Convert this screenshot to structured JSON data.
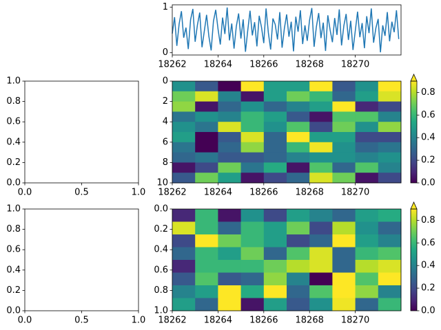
{
  "chart_data": [
    {
      "type": "line",
      "color": "#1f77b4",
      "x": [
        18262,
        18262.1,
        18262.2,
        18262.3,
        18262.4,
        18262.5,
        18262.6,
        18262.7,
        18262.8,
        18262.9,
        18263,
        18263.1,
        18263.2,
        18263.3,
        18263.4,
        18263.5,
        18263.6,
        18263.7,
        18263.8,
        18263.9,
        18264,
        18264.1,
        18264.2,
        18264.3,
        18264.4,
        18264.5,
        18264.6,
        18264.7,
        18264.8,
        18264.9,
        18265,
        18265.1,
        18265.2,
        18265.3,
        18265.4,
        18265.5,
        18265.6,
        18265.7,
        18265.8,
        18265.9,
        18266,
        18266.1,
        18266.2,
        18266.3,
        18266.4,
        18266.5,
        18266.6,
        18266.7,
        18266.8,
        18266.9,
        18267,
        18267.1,
        18267.2,
        18267.3,
        18267.4,
        18267.5,
        18267.6,
        18267.7,
        18267.8,
        18267.9,
        18268,
        18268.1,
        18268.2,
        18268.3,
        18268.4,
        18268.5,
        18268.6,
        18268.7,
        18268.8,
        18268.9,
        18269,
        18269.1,
        18269.2,
        18269.3,
        18269.4,
        18269.5,
        18269.6,
        18269.7,
        18269.8,
        18269.9,
        18270,
        18270.1,
        18270.2,
        18270.3,
        18270.4,
        18270.5,
        18270.6,
        18270.7,
        18270.8,
        18270.9,
        18271,
        18271.1,
        18271.2,
        18271.3,
        18271.4,
        18271.5,
        18271.6,
        18271.7,
        18271.8,
        18271.9
      ],
      "values": [
        0.42,
        0.78,
        0.15,
        0.63,
        0.91,
        0.33,
        0.55,
        0.08,
        0.72,
        0.96,
        0.24,
        0.61,
        0.88,
        0.12,
        0.47,
        0.83,
        0.36,
        0.05,
        0.69,
        0.94,
        0.52,
        0.18,
        0.77,
        0.41,
        0.99,
        0.27,
        0.64,
        0.09,
        0.58,
        0.86,
        0.31,
        0.73,
        0.02,
        0.49,
        0.92,
        0.38,
        0.67,
        0.14,
        0.81,
        0.56,
        0.21,
        0.97,
        0.44,
        0.07,
        0.75,
        0.62,
        0.29,
        0.89,
        0.11,
        0.53,
        0.84,
        0.35,
        0.68,
        0.03,
        0.79,
        0.46,
        0.93,
        0.19,
        0.6,
        0.26,
        0.71,
        0.98,
        0.13,
        0.57,
        0.87,
        0.32,
        0.66,
        0.04,
        0.82,
        0.5,
        0.23,
        0.76,
        0.39,
        0.95,
        0.16,
        0.59,
        0.85,
        0.28,
        0.7,
        0.06,
        0.48,
        0.9,
        0.34,
        0.65,
        0.1,
        0.8,
        0.43,
        0.97,
        0.22,
        0.54,
        0.74,
        0.01,
        0.6,
        0.37,
        0.89,
        0.25,
        0.68,
        0.45,
        0.93,
        0.3
      ],
      "xlim": [
        18262,
        18272
      ],
      "xticks": [
        18262,
        18264,
        18266,
        18268,
        18270
      ],
      "ylim": [
        -0.05,
        1.05
      ],
      "yticks": [
        0,
        1
      ]
    },
    {
      "type": "empty",
      "xlim": [
        0,
        1
      ],
      "ylim": [
        0,
        1
      ],
      "xticks": [
        {
          "value": 0,
          "label": "0.0"
        },
        0.5,
        {
          "value": 1,
          "label": "1.0"
        }
      ],
      "yticks": [
        {
          "value": 0,
          "label": "0.0"
        },
        0.2,
        0.4,
        0.6,
        0.8,
        {
          "value": 1,
          "label": "1.0"
        }
      ]
    },
    {
      "type": "heatmap",
      "colormap": "viridis",
      "xlim": [
        18262,
        18272
      ],
      "xticks": [
        18262,
        18264,
        18266,
        18268,
        18270
      ],
      "ylim": [
        10,
        0
      ],
      "yticks": [
        0,
        2,
        4,
        6,
        8,
        10
      ],
      "z": [
        [
          0.45,
          0.25,
          0.0,
          0.95,
          0.5,
          0.5,
          0.95,
          0.25,
          0.45,
          0.98
        ],
        [
          0.7,
          0.85,
          0.4,
          0.05,
          0.5,
          0.7,
          0.6,
          0.3,
          0.5,
          0.85
        ],
        [
          0.75,
          0.05,
          0.3,
          0.45,
          0.3,
          0.4,
          0.5,
          0.95,
          0.1,
          0.2
        ],
        [
          0.35,
          0.45,
          0.4,
          0.6,
          0.5,
          0.25,
          0.05,
          0.65,
          0.65,
          0.4
        ],
        [
          0.45,
          0.35,
          0.85,
          0.6,
          0.45,
          0.65,
          0.2,
          0.7,
          0.45,
          0.75
        ],
        [
          0.5,
          0.0,
          0.25,
          0.85,
          0.3,
          0.95,
          0.5,
          0.5,
          0.2,
          0.2
        ],
        [
          0.35,
          0.0,
          0.3,
          0.75,
          0.3,
          0.6,
          0.88,
          0.45,
          0.3,
          0.35
        ],
        [
          0.3,
          0.35,
          0.25,
          0.25,
          0.3,
          0.4,
          0.45,
          0.45,
          0.4,
          0.45
        ],
        [
          0.05,
          0.2,
          0.7,
          0.35,
          0.55,
          0.05,
          0.65,
          0.3,
          0.65,
          0.4
        ],
        [
          0.25,
          0.7,
          0.5,
          0.05,
          0.2,
          0.3,
          0.85,
          0.7,
          0.05,
          0.2
        ]
      ],
      "colorbar": {
        "lim": [
          0,
          0.9
        ],
        "extend": "max",
        "ticks": [
          {
            "value": 0,
            "label": "0.0"
          },
          0.2,
          0.4,
          0.6,
          0.8
        ]
      }
    },
    {
      "type": "empty",
      "xlim": [
        0,
        1
      ],
      "ylim": [
        0,
        1
      ],
      "xticks": [
        {
          "value": 0,
          "label": "0.0"
        },
        0.5,
        {
          "value": 1,
          "label": "1.0"
        }
      ],
      "yticks": [
        {
          "value": 0,
          "label": "0.0"
        },
        0.2,
        0.4,
        0.6,
        0.8,
        {
          "value": 1,
          "label": "1.0"
        }
      ]
    },
    {
      "type": "heatmap",
      "colormap": "viridis",
      "xlim": [
        18262,
        18272
      ],
      "xticks": [
        18262,
        18264,
        18266,
        18268,
        18270
      ],
      "ylim": [
        1,
        0
      ],
      "yticks": [
        {
          "value": 0,
          "label": "0.0"
        },
        0.2,
        0.4,
        0.6,
        0.8,
        {
          "value": 1,
          "label": "1.0"
        }
      ],
      "z": [
        [
          0.1,
          0.6,
          0.05,
          0.45,
          0.2,
          0.5,
          0.4,
          0.3,
          0.5,
          0.55
        ],
        [
          0.85,
          0.6,
          0.3,
          0.6,
          0.5,
          0.7,
          0.2,
          0.8,
          0.45,
          0.3
        ],
        [
          0.2,
          0.95,
          0.7,
          0.6,
          0.5,
          0.2,
          0.3,
          0.95,
          0.5,
          0.4
        ],
        [
          0.3,
          0.6,
          0.5,
          0.7,
          0.3,
          0.65,
          0.85,
          0.3,
          0.6,
          0.65
        ],
        [
          0.1,
          0.6,
          0.6,
          0.6,
          0.7,
          0.8,
          0.85,
          0.3,
          0.8,
          0.85
        ],
        [
          0.25,
          0.65,
          0.25,
          0.3,
          0.75,
          0.4,
          0.0,
          0.95,
          0.65,
          0.95
        ],
        [
          0.4,
          0.5,
          0.9,
          0.55,
          0.95,
          0.3,
          0.65,
          0.95,
          0.75,
          0.4
        ],
        [
          0.5,
          0.3,
          0.95,
          0.05,
          0.5,
          0.25,
          0.45,
          0.88,
          0.3,
          0.6
        ]
      ],
      "colorbar": {
        "lim": [
          0,
          0.9
        ],
        "extend": "max",
        "ticks": [
          {
            "value": 0,
            "label": "0.0"
          },
          0.2,
          0.4,
          0.6,
          0.8
        ]
      }
    }
  ]
}
